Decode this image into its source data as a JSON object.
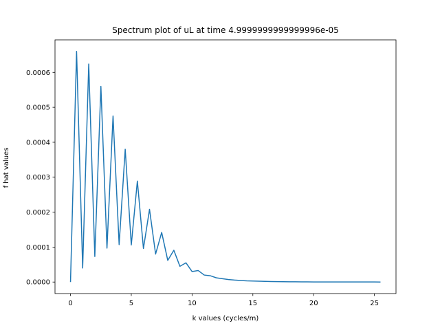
{
  "chart_data": {
    "type": "line",
    "title": "Spectrum plot of uL at time 4.9999999999999996e-05",
    "xlabel": "k values (cycles/m)",
    "ylabel": "f hat values",
    "xlim": [
      -1.275,
      26.775
    ],
    "ylim": [
      -3.3e-05,
      0.000693
    ],
    "xticks": [
      0,
      5,
      10,
      15,
      20,
      25
    ],
    "xtick_labels": [
      "0",
      "5",
      "10",
      "15",
      "20",
      "25"
    ],
    "yticks": [
      0.0,
      0.0001,
      0.0002,
      0.0003,
      0.0004,
      0.0005,
      0.0006
    ],
    "ytick_labels": [
      "0.0000",
      "0.0001",
      "0.0002",
      "0.0003",
      "0.0004",
      "0.0005",
      "0.0006"
    ],
    "grid": false,
    "legend": false,
    "color": "#1f77b4",
    "series": [
      {
        "x": [
          0,
          0.5,
          1.0,
          1.5,
          2.0,
          2.5,
          3.0,
          3.5,
          4.0,
          4.5,
          5.0,
          5.5,
          6.0,
          6.5,
          7.0,
          7.5,
          8.0,
          8.5,
          9.0,
          9.5,
          10.0,
          10.5,
          11.0,
          11.5,
          12.0,
          12.5,
          13.0,
          13.5,
          14.0,
          14.5,
          15.0,
          15.5,
          16.0,
          16.5,
          17.0,
          17.5,
          18.0,
          18.5,
          19.0,
          19.5,
          20.0,
          20.5,
          21.0,
          21.5,
          22.0,
          22.5,
          23.0,
          23.5,
          24.0,
          24.5,
          25.0,
          25.5
        ],
        "y": [
          0.0,
          0.00066,
          4e-05,
          0.000624,
          7.3e-05,
          0.00056,
          9.7e-05,
          0.000475,
          0.000107,
          0.00038,
          0.000106,
          0.000289,
          9.6e-05,
          0.000208,
          8e-05,
          0.000142,
          6.2e-05,
          9.1e-05,
          4.5e-05,
          5.5e-05,
          3e-05,
          3.3e-05,
          2e-05,
          1.8e-05,
          1.2e-05,
          9.5e-06,
          7e-06,
          5.5e-06,
          4.5e-06,
          3.5e-06,
          3e-06,
          2.5e-06,
          2e-06,
          1.5e-06,
          1.2e-06,
          1e-06,
          8e-07,
          6e-07,
          5e-07,
          4e-07,
          3e-07,
          3e-07,
          2e-07,
          2e-07,
          2e-07,
          1e-07,
          1e-07,
          1e-07,
          1e-07,
          1e-07,
          1e-07,
          0.0
        ]
      }
    ]
  }
}
